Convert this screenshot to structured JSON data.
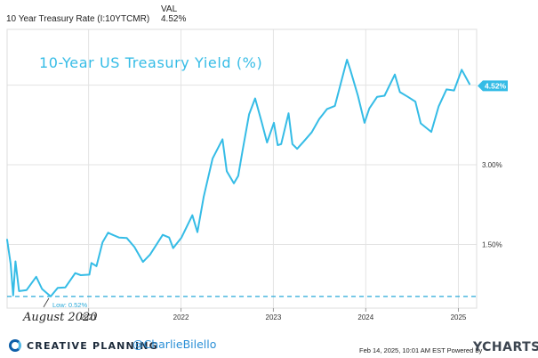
{
  "legend": {
    "series_name": "10 Year Treasury Rate (I:10YTCMR)",
    "column_header": "VAL",
    "value": "4.52%"
  },
  "colors": {
    "line": "#35bce6",
    "grid": "#e3e3e3",
    "axis_text": "#333333",
    "annotation": "#2aaad9",
    "badge_text": "#ffffff"
  },
  "chart_data": {
    "type": "line",
    "title": "10-Year US Treasury Yield (%)",
    "xlabel": "",
    "ylabel": "",
    "x_tick_labels": [
      "2021",
      "2022",
      "2023",
      "2024",
      "2025"
    ],
    "y_tick_labels": [
      "1.50%",
      "3.00%"
    ],
    "ylim": [
      0.3,
      5.55
    ],
    "grid": true,
    "series": [
      {
        "name": "10 Year Treasury Rate (I:10YTCMR)",
        "x": [
          "2020-02-14",
          "2020-02-28",
          "2020-03-09",
          "2020-03-18",
          "2020-04-01",
          "2020-05-01",
          "2020-06-08",
          "2020-07-01",
          "2020-08-04",
          "2020-09-01",
          "2020-10-01",
          "2020-11-09",
          "2020-12-01",
          "2021-01-04",
          "2021-01-12",
          "2021-02-01",
          "2021-02-25",
          "2021-03-19",
          "2021-04-01",
          "2021-05-01",
          "2021-06-01",
          "2021-07-01",
          "2021-08-04",
          "2021-09-01",
          "2021-10-21",
          "2021-11-15",
          "2021-12-01",
          "2022-01-03",
          "2022-02-15",
          "2022-03-07",
          "2022-04-01",
          "2022-05-06",
          "2022-06-14",
          "2022-07-01",
          "2022-07-29",
          "2022-08-15",
          "2022-09-01",
          "2022-09-27",
          "2022-10-21",
          "2022-11-15",
          "2022-12-07",
          "2023-01-03",
          "2023-01-18",
          "2023-02-01",
          "2023-03-02",
          "2023-03-17",
          "2023-04-05",
          "2023-05-01",
          "2023-06-01",
          "2023-07-01",
          "2023-08-01",
          "2023-09-01",
          "2023-10-19",
          "2023-11-01",
          "2023-12-01",
          "2023-12-27",
          "2024-01-15",
          "2024-02-15",
          "2024-03-15",
          "2024-04-25",
          "2024-05-15",
          "2024-06-15",
          "2024-07-15",
          "2024-08-05",
          "2024-09-16",
          "2024-10-15",
          "2024-11-15",
          "2024-12-15",
          "2025-01-14",
          "2025-02-14"
        ],
        "values": [
          1.59,
          1.13,
          0.54,
          1.18,
          0.62,
          0.64,
          0.89,
          0.66,
          0.52,
          0.68,
          0.69,
          0.96,
          0.92,
          0.93,
          1.15,
          1.09,
          1.54,
          1.72,
          1.69,
          1.63,
          1.62,
          1.45,
          1.17,
          1.31,
          1.68,
          1.63,
          1.43,
          1.63,
          2.05,
          1.73,
          2.4,
          3.12,
          3.48,
          2.88,
          2.65,
          2.79,
          3.26,
          3.95,
          4.25,
          3.82,
          3.42,
          3.79,
          3.37,
          3.39,
          3.97,
          3.39,
          3.3,
          3.44,
          3.61,
          3.86,
          4.05,
          4.11,
          4.98,
          4.79,
          4.3,
          3.79,
          4.06,
          4.28,
          4.3,
          4.7,
          4.37,
          4.28,
          4.19,
          3.78,
          3.62,
          4.1,
          4.42,
          4.4,
          4.79,
          4.52
        ]
      }
    ],
    "annotations": [
      {
        "text": "Low: 0.52%",
        "x": "2020-08-04",
        "y": 0.52
      },
      {
        "text": "August 2020",
        "x": "2020-08-04",
        "y": 0.52
      }
    ],
    "reference_lines": [
      {
        "orientation": "horizontal",
        "y": 0.52,
        "style": "dashed"
      }
    ],
    "end_label": "4.52%"
  },
  "footer": {
    "brand": "CREATIVE PLANNING",
    "handle": "@CharlieBilello",
    "note": "Feb 14, 2025, 10:01 AM EST Powered by",
    "provider": "YCHARTS"
  }
}
